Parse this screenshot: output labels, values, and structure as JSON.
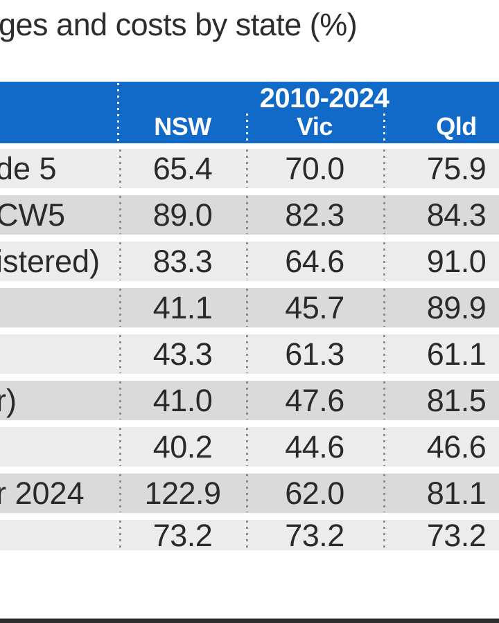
{
  "title": "ges and costs by state (%)",
  "table": {
    "period_header": "2010-2024",
    "columns": [
      "NSW",
      "Vic",
      "Qld"
    ],
    "rows": [
      {
        "label": "de 5",
        "values": [
          "65.4",
          "70.0",
          "75.9"
        ]
      },
      {
        "label": "CW5",
        "values": [
          "89.0",
          "82.3",
          "84.3"
        ]
      },
      {
        "label": "istered)",
        "values": [
          "83.3",
          "64.6",
          "91.0"
        ]
      },
      {
        "label": "",
        "values": [
          "41.1",
          "45.7",
          "89.9"
        ]
      },
      {
        "label": "",
        "values": [
          "43.3",
          "61.3",
          "61.1"
        ]
      },
      {
        "label": "r)",
        "values": [
          "41.0",
          "47.6",
          "81.5"
        ]
      },
      {
        "label": "",
        "values": [
          "40.2",
          "44.6",
          "46.6"
        ]
      },
      {
        "label": "r 2024",
        "values": [
          "122.9",
          "62.0",
          "81.1"
        ]
      },
      {
        "label": "",
        "values": [
          "73.2",
          "73.2",
          "73.2"
        ]
      }
    ]
  },
  "colors": {
    "header_blue": "#1169c8",
    "row_light": "#ececec",
    "row_dark": "#dadada",
    "text_dark": "#2a2a2a",
    "footer_bar": "#2e2e2e"
  },
  "chart_data": {
    "type": "table",
    "title": "ges and costs by state (%)",
    "group_header": "2010-2024",
    "columns": [
      "NSW",
      "Vic",
      "Qld"
    ],
    "row_labels": [
      "de 5",
      "CW5",
      "istered)",
      "",
      "",
      "r)",
      "",
      "r 2024",
      ""
    ],
    "series": [
      {
        "name": "NSW",
        "values": [
          65.4,
          89.0,
          83.3,
          41.1,
          43.3,
          41.0,
          40.2,
          122.9,
          73.2
        ]
      },
      {
        "name": "Vic",
        "values": [
          70.0,
          82.3,
          64.6,
          45.7,
          61.3,
          47.6,
          44.6,
          62.0,
          73.2
        ]
      },
      {
        "name": "Qld",
        "values": [
          75.9,
          84.3,
          91.0,
          89.9,
          61.1,
          81.5,
          46.6,
          81.1,
          73.2
        ]
      }
    ],
    "layout": {
      "striped_rows": true,
      "column_separators": "dotted",
      "header_color": "#1169c8"
    }
  }
}
